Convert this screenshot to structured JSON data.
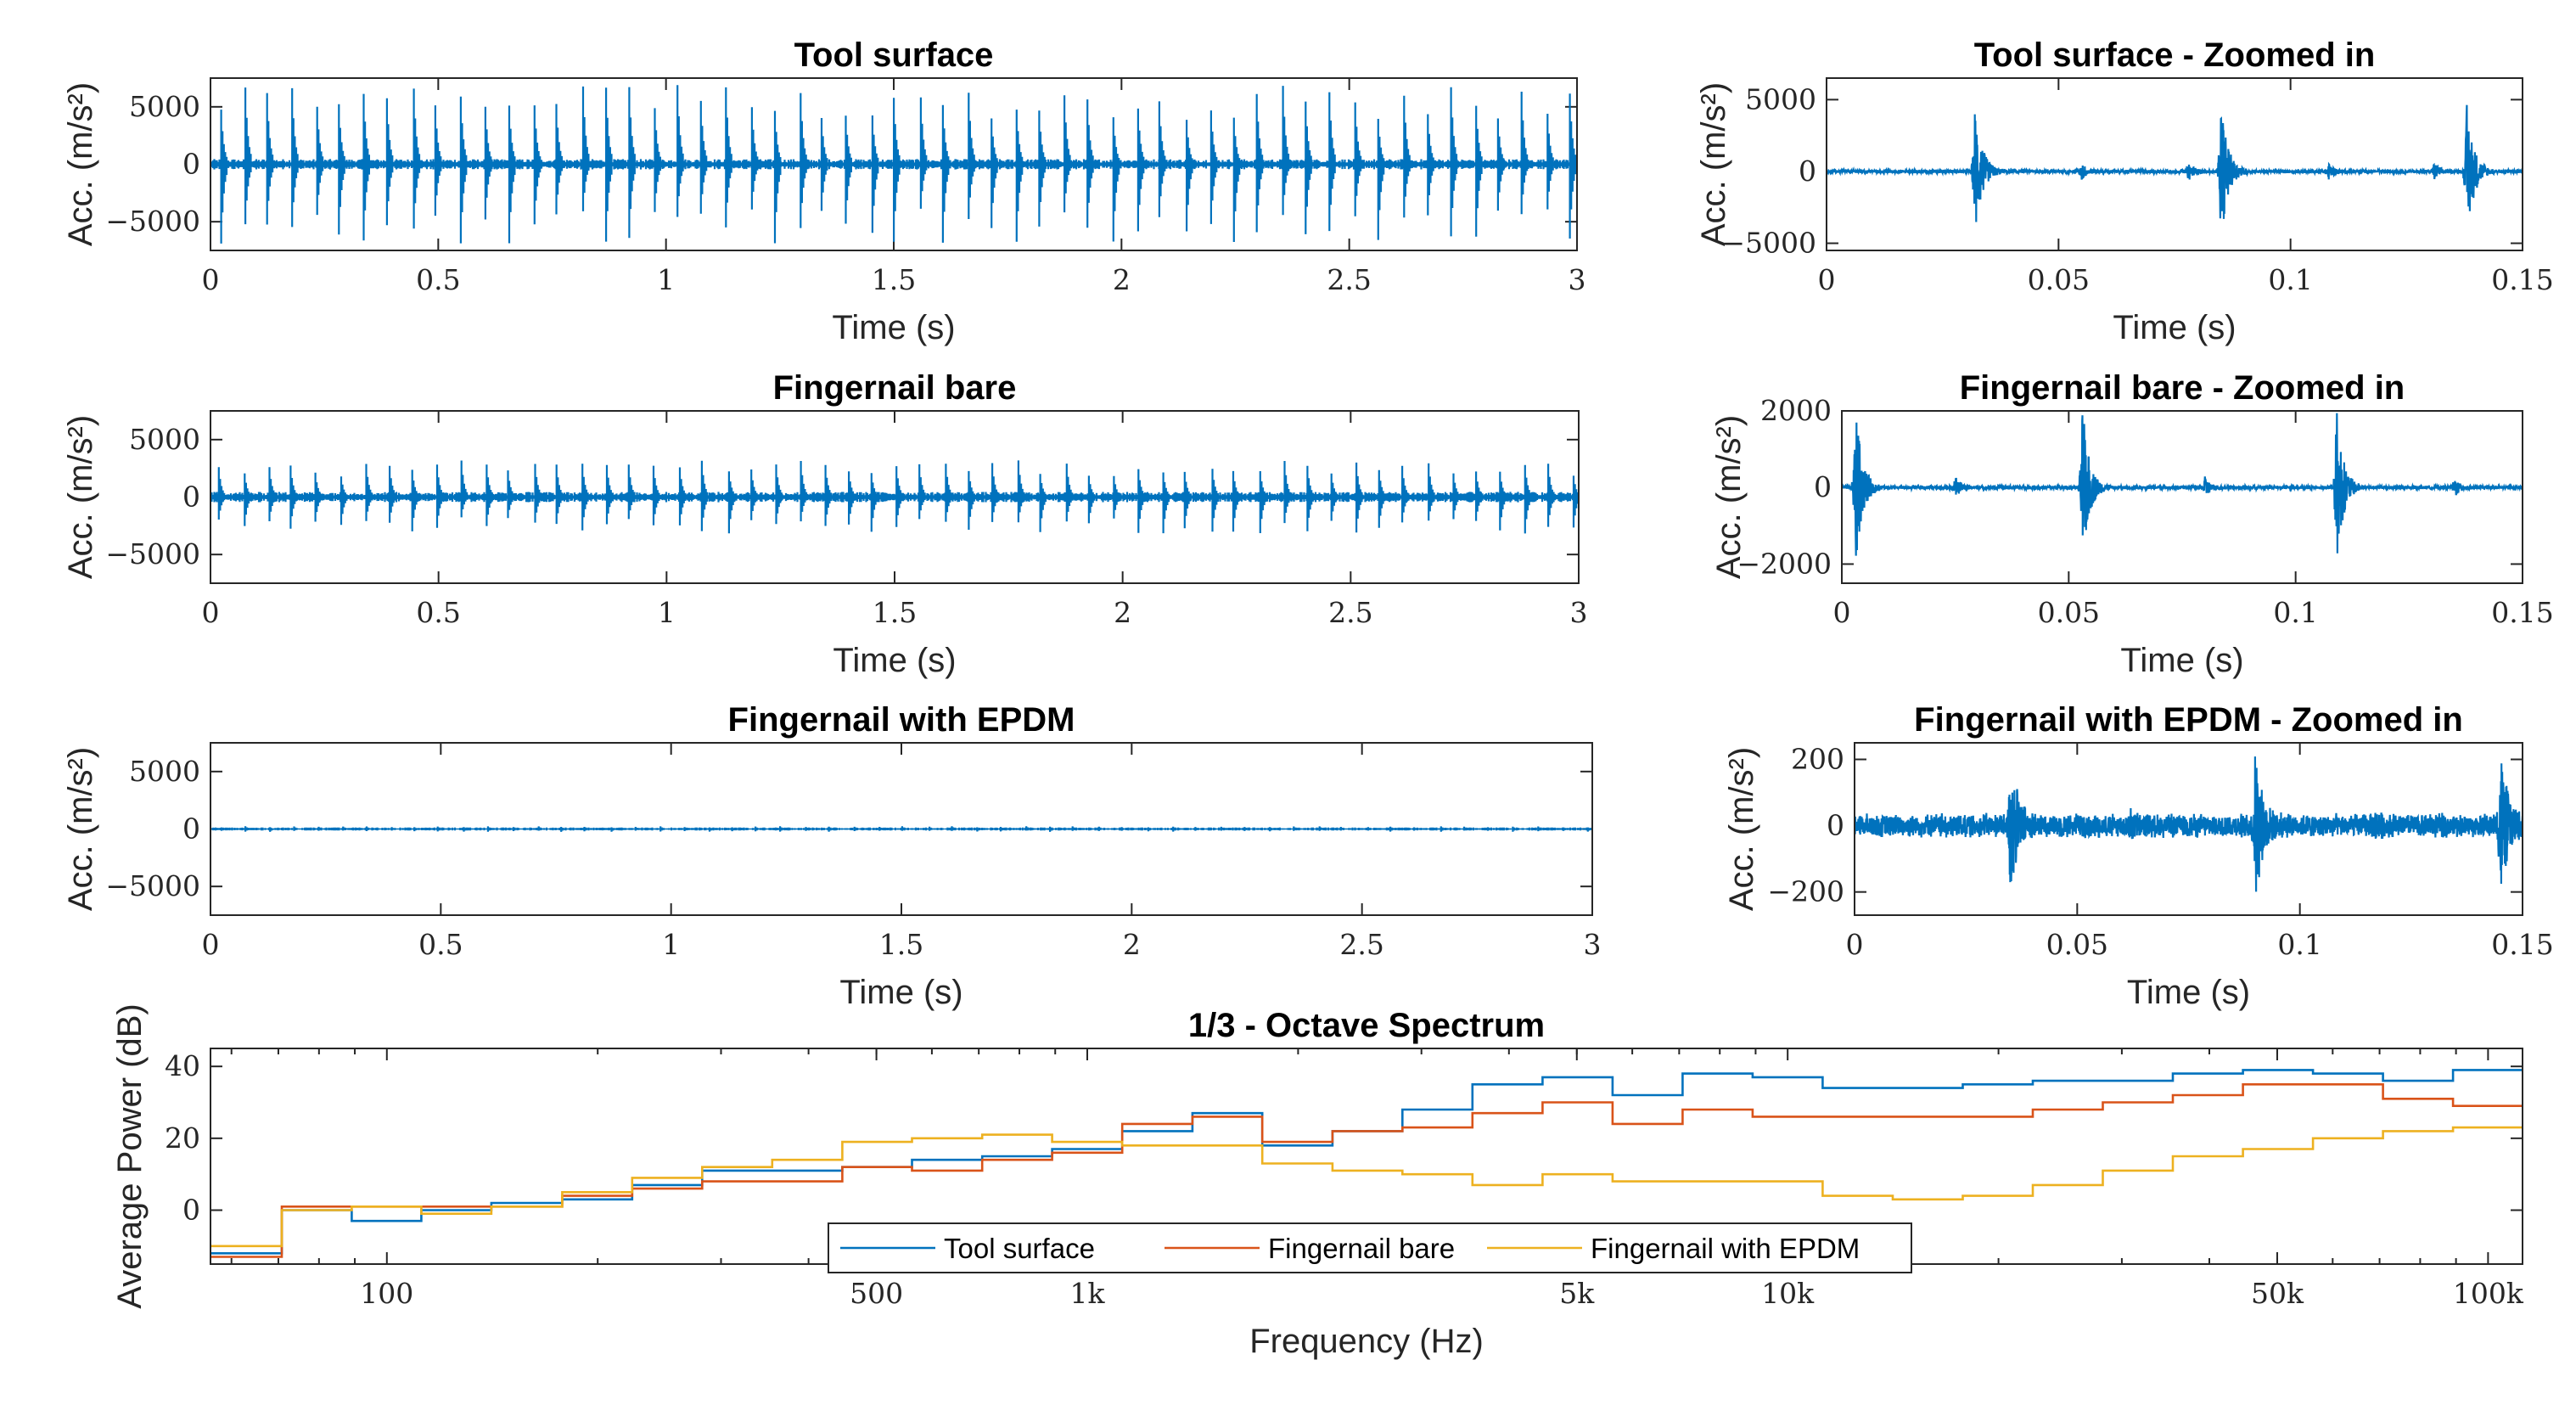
{
  "chart_data": [
    {
      "type": "line",
      "id": "tool",
      "title": "Tool surface",
      "xlabel": "Time (s)",
      "ylabel": "Acc. (m/s²)",
      "xlim": [
        0,
        3
      ],
      "ylim": [
        -7500,
        7500
      ],
      "xticks": [
        0,
        0.5,
        1,
        1.5,
        2,
        2.5,
        3
      ],
      "xticklabels": [
        "0",
        "0.5",
        "1",
        "1.5",
        "2",
        "2.5",
        "3"
      ],
      "yticks": [
        5000,
        0,
        -5000
      ],
      "yticklabels": [
        "5000",
        "0",
        "−5000"
      ],
      "series": [
        {
          "name": "Tool surface",
          "color": "#0072BD",
          "impact_interval_s": 0.053,
          "peak_amplitude": 7000,
          "noise_amplitude": 300
        }
      ]
    },
    {
      "type": "line",
      "id": "tool_zoom",
      "title": "Tool surface - Zoomed in",
      "xlabel": "Time (s)",
      "ylabel": "Acc. (m/s²)",
      "xlim": [
        0,
        0.15
      ],
      "ylim": [
        -5500,
        6500
      ],
      "xticks": [
        0,
        0.05,
        0.1,
        0.15
      ],
      "xticklabels": [
        "0",
        "0.05",
        "0.1",
        "0.15"
      ],
      "yticks": [
        5000,
        0,
        -5000
      ],
      "yticklabels": [
        "5000",
        "0",
        "−5000"
      ],
      "series": [
        {
          "name": "Tool surface",
          "color": "#0072BD",
          "impacts_s": [
            0.032,
            0.085,
            0.138
          ],
          "minor_impacts_s": [
            0.055,
            0.078,
            0.108,
            0.131
          ],
          "peak_amplitude": 5000,
          "noise_amplitude": 200
        }
      ]
    },
    {
      "type": "line",
      "id": "bare",
      "title": "Fingernail bare",
      "xlabel": "Time (s)",
      "ylabel": "Acc. (m/s²)",
      "xlim": [
        0,
        3
      ],
      "ylim": [
        -7500,
        7500
      ],
      "xticks": [
        0,
        0.5,
        1,
        1.5,
        2,
        2.5,
        3
      ],
      "xticklabels": [
        "0",
        "0.5",
        "1",
        "1.5",
        "2",
        "2.5",
        "3"
      ],
      "yticks": [
        5000,
        0,
        -5000
      ],
      "yticklabels": [
        "5000",
        "0",
        "−5000"
      ],
      "series": [
        {
          "name": "Fingernail bare",
          "color": "#0072BD",
          "impact_interval_s": 0.053,
          "peak_amplitude": 3200,
          "noise_amplitude": 300
        }
      ]
    },
    {
      "type": "line",
      "id": "bare_zoom",
      "title": "Fingernail bare - Zoomed in",
      "xlabel": "Time (s)",
      "ylabel": "Acc. (m/s²)",
      "xlim": [
        0,
        0.15
      ],
      "ylim": [
        -2500,
        2000
      ],
      "xticks": [
        0,
        0.05,
        0.1,
        0.15
      ],
      "xticklabels": [
        "0",
        "0.05",
        "0.1",
        "0.15"
      ],
      "yticks": [
        2000,
        0,
        -2000
      ],
      "yticklabels": [
        "2000",
        "0",
        "−2000"
      ],
      "series": [
        {
          "name": "Fingernail bare",
          "color": "#0072BD",
          "impacts_s": [
            0.003,
            0.053,
            0.109
          ],
          "minor_impacts_s": [
            0.025,
            0.08,
            0.135
          ],
          "peak_amplitude": 2200,
          "noise_amplitude": 80
        }
      ]
    },
    {
      "type": "line",
      "id": "epdm",
      "title": "Fingernail with EPDM",
      "xlabel": "Time (s)",
      "ylabel": "Acc. (m/s²)",
      "xlim": [
        0,
        3
      ],
      "ylim": [
        -7500,
        7500
      ],
      "xticks": [
        0,
        0.5,
        1,
        1.5,
        2,
        2.5,
        3
      ],
      "xticklabels": [
        "0",
        "0.5",
        "1",
        "1.5",
        "2",
        "2.5",
        "3"
      ],
      "yticks": [
        5000,
        0,
        -5000
      ],
      "yticklabels": [
        "5000",
        "0",
        "−5000"
      ],
      "series": [
        {
          "name": "Fingernail with EPDM",
          "color": "#0072BD",
          "impact_interval_s": 0.053,
          "peak_amplitude": 250,
          "noise_amplitude": 90
        }
      ]
    },
    {
      "type": "line",
      "id": "epdm_zoom",
      "title": "Fingernail with EPDM - Zoomed in",
      "xlabel": "Time (s)",
      "ylabel": "Acc. (m/s²)",
      "xlim": [
        0,
        0.15
      ],
      "ylim": [
        -270,
        250
      ],
      "xticks": [
        0,
        0.05,
        0.1,
        0.15
      ],
      "xticklabels": [
        "0",
        "0.05",
        "0.1",
        "0.15"
      ],
      "yticks": [
        200,
        0,
        -200
      ],
      "yticklabels": [
        "200",
        "0",
        "−200"
      ],
      "series": [
        {
          "name": "Fingernail with EPDM",
          "color": "#0072BD",
          "impacts_s": [
            0.035,
            0.09,
            0.145
          ],
          "minor_impacts_s": [
            0.062,
            0.117
          ],
          "peak_amplitude": 230,
          "noise_amplitude": 60
        }
      ]
    },
    {
      "type": "line",
      "id": "spectrum",
      "step": true,
      "xscale": "log",
      "title": "1/3 - Octave Spectrum",
      "xlabel": "Frequency (Hz)",
      "ylabel": "Average Power (dB)",
      "xlim": [
        56,
        112000
      ],
      "ylim": [
        -15,
        45
      ],
      "xticks": [
        100,
        500,
        1000,
        5000,
        10000,
        50000,
        100000
      ],
      "xticklabels": [
        "100",
        "500",
        "1k",
        "5k",
        "10k",
        "50k",
        "100k"
      ],
      "yticks": [
        40,
        20,
        0
      ],
      "yticklabels": [
        "40",
        "20",
        "0"
      ],
      "legend": "bottom-center",
      "band_edges": [
        56,
        70.8,
        89.1,
        112,
        141,
        178,
        224,
        282,
        355,
        447,
        562,
        708,
        891,
        1122,
        1413,
        1778,
        2239,
        2818,
        3548,
        4467,
        5623,
        7079,
        8913,
        11220,
        14125,
        17783,
        22387,
        28184,
        35481,
        44668,
        56234,
        70795,
        89125,
        112000
      ],
      "series": [
        {
          "name": "Tool surface",
          "color": "#0072BD",
          "values": [
            -12,
            0,
            -3,
            0,
            2,
            3,
            7,
            11,
            11,
            12,
            14,
            15,
            17,
            22,
            27,
            18,
            22,
            28,
            35,
            37,
            32,
            38,
            37,
            34,
            34,
            35,
            36,
            36,
            38,
            39,
            38,
            36,
            39
          ]
        },
        {
          "name": "Fingernail bare",
          "color": "#D95319",
          "values": [
            -13,
            1,
            1,
            1,
            1,
            4,
            6,
            8,
            8,
            12,
            11,
            14,
            16,
            24,
            26,
            19,
            22,
            23,
            27,
            30,
            24,
            28,
            26,
            26,
            26,
            26,
            28,
            30,
            32,
            35,
            35,
            31,
            29
          ]
        },
        {
          "name": "Fingernail with EPDM",
          "color": "#EDB120",
          "values": [
            -10,
            0,
            1,
            -1,
            1,
            5,
            9,
            12,
            14,
            19,
            20,
            21,
            19,
            18,
            18,
            13,
            11,
            10,
            7,
            10,
            8,
            8,
            8,
            4,
            3,
            4,
            7,
            11,
            15,
            17,
            20,
            22,
            23
          ]
        }
      ]
    }
  ]
}
